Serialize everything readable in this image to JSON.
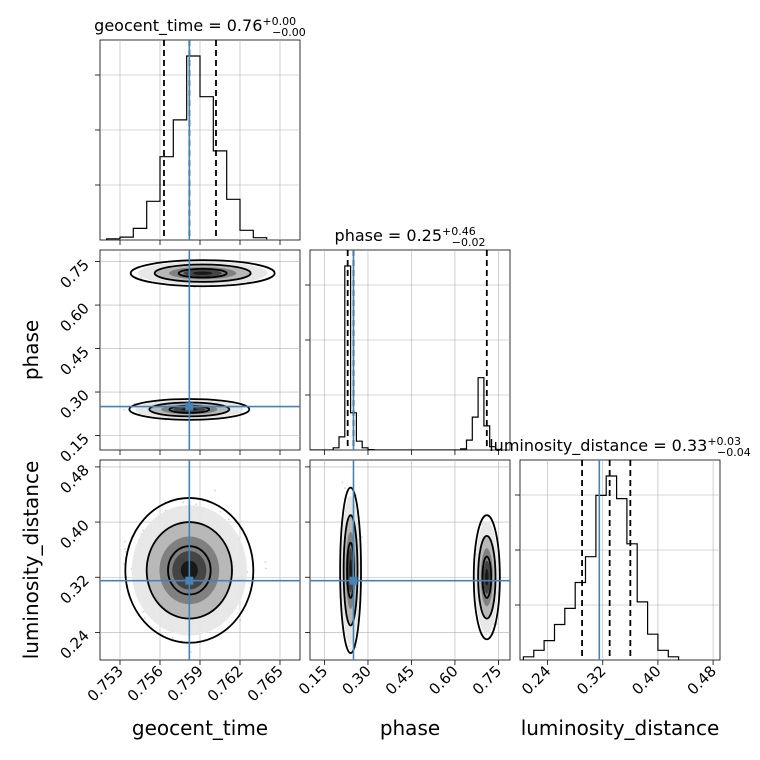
{
  "chart_data": {
    "type": "corner",
    "parameters": [
      {
        "key": "geocent_time",
        "label": "geocent_time",
        "range": [
          0.7515,
          0.7665
        ],
        "ticks": [
          0.753,
          0.756,
          0.759,
          0.762,
          0.765
        ],
        "tick_labels": [
          "0.753",
          "0.756",
          "0.759",
          "0.762",
          "0.765"
        ],
        "truth": 0.7582,
        "quantiles": [
          0.7563,
          0.7582,
          0.7602
        ],
        "title": "geocent_time = 0.76",
        "title_sup": "+0.00",
        "title_sub": "−0.00",
        "hist_bins": [
          0.752,
          0.753,
          0.754,
          0.755,
          0.756,
          0.757,
          0.758,
          0.759,
          0.76,
          0.761,
          0.762,
          0.763,
          0.764
        ],
        "hist_values": [
          0.6,
          1.5,
          6,
          20,
          43,
          62,
          95,
          74,
          46,
          21,
          5,
          1.2,
          0.4
        ]
      },
      {
        "key": "phase",
        "label": "phase",
        "range": [
          0.1,
          0.79
        ],
        "ticks": [
          0.15,
          0.3,
          0.45,
          0.6,
          0.75
        ],
        "tick_labels": [
          "0.15",
          "0.30",
          "0.45",
          "0.60",
          "0.75"
        ],
        "truth": 0.25,
        "quantiles": [
          0.23,
          0.25,
          0.71
        ],
        "title": "phase = 0.25",
        "title_sup": "+0.46",
        "title_sub": "−0.02",
        "hist_bins": [
          0.1,
          0.12,
          0.14,
          0.16,
          0.18,
          0.2,
          0.22,
          0.24,
          0.26,
          0.28,
          0.3,
          0.32,
          0.34,
          0.6,
          0.62,
          0.64,
          0.66,
          0.68,
          0.7,
          0.72,
          0.74,
          0.76
        ],
        "hist_values": [
          0,
          0,
          0,
          0,
          2,
          12,
          168,
          34,
          8,
          2,
          0.4,
          0,
          0,
          0,
          1,
          9,
          30,
          66,
          22,
          3,
          0.5,
          0
        ]
      },
      {
        "key": "luminosity_distance",
        "label": "luminosity_distance",
        "range": [
          0.2,
          0.49
        ],
        "ticks": [
          0.24,
          0.32,
          0.4,
          0.48
        ],
        "tick_labels": [
          "0.24",
          "0.32",
          "0.40",
          "0.48"
        ],
        "truth": 0.315,
        "quantiles": [
          0.29,
          0.33,
          0.36
        ],
        "title": "luminosity_distance = 0.33",
        "title_sup": "+0.03",
        "title_sub": "−0.04",
        "hist_bins": [
          0.205,
          0.22,
          0.235,
          0.25,
          0.265,
          0.28,
          0.295,
          0.31,
          0.325,
          0.34,
          0.355,
          0.37,
          0.385,
          0.4,
          0.415,
          0.43
        ],
        "hist_values": [
          1,
          3,
          6,
          11,
          16,
          24,
          32,
          51,
          57,
          50,
          36,
          18,
          8,
          3,
          1
        ]
      },
      {
        "key": "_unused",
        "label": "",
        "range": [
          0,
          1
        ],
        "ticks": [],
        "tick_labels": []
      }
    ],
    "grid": true,
    "truth_color": "#4682b4",
    "contour_color": "#000000",
    "contour_levels": [
      "0.393",
      "0.865",
      "0.989"
    ],
    "modes": {
      "phase_vs_time": [
        {
          "x": 0.7582,
          "y": 0.24,
          "sx": 0.0015,
          "sy": 0.012,
          "weight": 0.7
        },
        {
          "x": 0.7592,
          "y": 0.71,
          "sx": 0.0018,
          "sy": 0.015,
          "weight": 0.3
        }
      ],
      "distance_vs_time": [
        {
          "x": 0.7582,
          "y": 0.33,
          "sx": 0.0016,
          "sy": 0.035,
          "weight": 1.0
        }
      ],
      "distance_vs_phase": [
        {
          "x": 0.24,
          "y": 0.33,
          "sx": 0.012,
          "sy": 0.04,
          "weight": 0.7
        },
        {
          "x": 0.71,
          "y": 0.32,
          "sx": 0.015,
          "sy": 0.03,
          "weight": 0.3
        }
      ]
    }
  }
}
